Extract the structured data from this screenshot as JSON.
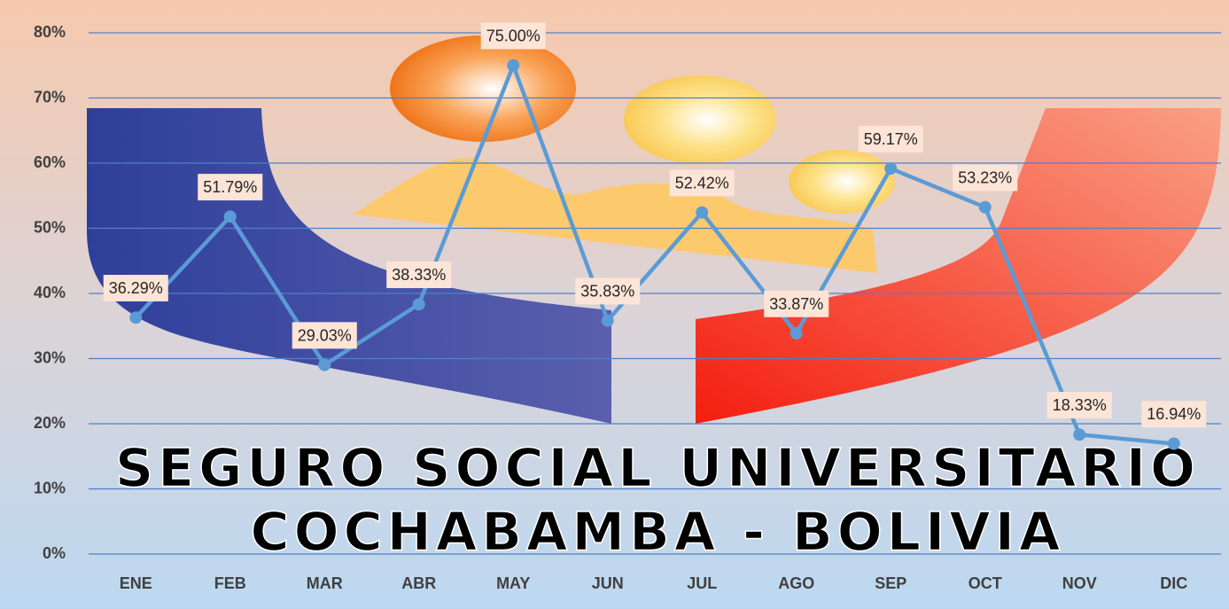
{
  "chart_data": {
    "type": "line",
    "categories": [
      "ENE",
      "FEB",
      "MAR",
      "ABR",
      "MAY",
      "JUN",
      "JUL",
      "AGO",
      "SEP",
      "OCT",
      "NOV",
      "DIC"
    ],
    "values": [
      36.29,
      51.79,
      29.03,
      38.33,
      75.0,
      35.83,
      52.42,
      33.87,
      59.17,
      53.23,
      18.33,
      16.94
    ],
    "value_labels": [
      "36.29%",
      "51.79%",
      "29.03%",
      "38.33%",
      "75.00%",
      "35.83%",
      "52.42%",
      "33.87%",
      "59.17%",
      "53.23%",
      "18.33%",
      "16.94%"
    ],
    "color": "#5b9bd5",
    "ylim": [
      0,
      80
    ],
    "yticks": [
      {
        "value": 0,
        "label": "0%"
      },
      {
        "value": 10,
        "label": "10%"
      },
      {
        "value": 20,
        "label": "20%"
      },
      {
        "value": 30,
        "label": "30%"
      },
      {
        "value": 40,
        "label": "40%"
      },
      {
        "value": 50,
        "label": "50%"
      },
      {
        "value": 60,
        "label": "60%"
      },
      {
        "value": 70,
        "label": "70%"
      },
      {
        "value": 80,
        "label": "80%"
      }
    ],
    "grid": true,
    "background_text": [
      "SEGURO SOCIAL UNIVERSITARIO",
      "COCHABAMBA - BOLIVIA"
    ]
  }
}
